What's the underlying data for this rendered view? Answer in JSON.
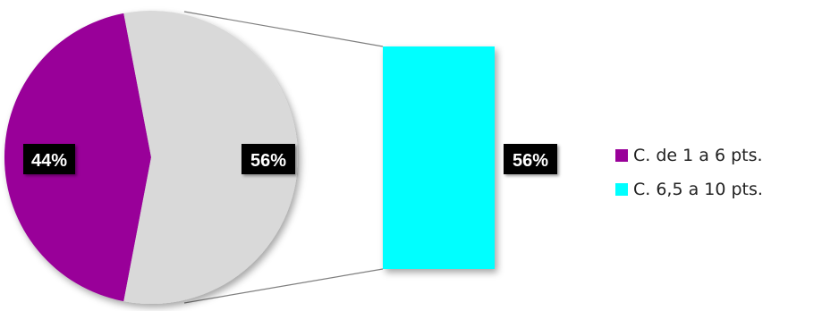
{
  "chart_data": {
    "type": "pie",
    "subtype": "bar-of-pie",
    "slices": [
      {
        "value": 44,
        "label": "44%",
        "color": "#990099"
      },
      {
        "value": 56,
        "label": "56%",
        "color": "#d9d9d9"
      }
    ],
    "breakout": [
      {
        "value": 56,
        "label": "56%",
        "color": "#00ffff"
      }
    ],
    "legend": {
      "placement": "right",
      "entries": [
        {
          "label": "C. de 1 a 6 pts.",
          "color": "#990099"
        },
        {
          "label": "C. 6,5 a 10 pts.",
          "color": "#00ffff"
        }
      ]
    },
    "label_style": {
      "background": "#000000",
      "text_color": "#ffffff"
    },
    "connector_color": "#7f7f7f"
  }
}
